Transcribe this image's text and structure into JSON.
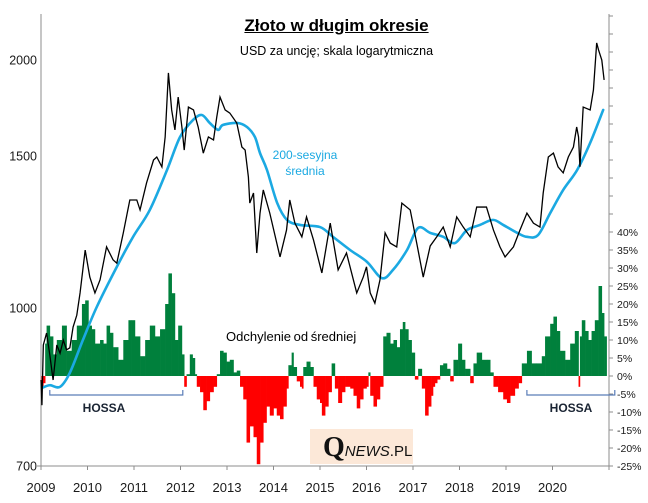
{
  "chart_data": {
    "type": "line",
    "title": "Złoto w długim okresie",
    "subtitle": "USD za uncję; skala logarytmiczna",
    "x_ticks": [
      "2009",
      "2010",
      "2011",
      "2012",
      "2013",
      "2014",
      "2015",
      "2016",
      "2017",
      "2018",
      "2019",
      "2020"
    ],
    "y_left": {
      "scale": "log",
      "tick_values": [
        700,
        1000,
        1500,
        2000
      ],
      "tick_labels": [
        "700",
        "1000",
        "1500",
        "2000"
      ]
    },
    "y_right": {
      "min": -25,
      "max": 100,
      "step": 5,
      "tick_labels": [
        "-25%",
        "-20%",
        "-15%",
        "-10%",
        "-5%",
        "0%",
        "5%",
        "10%",
        "15%",
        "20%",
        "25%",
        "30%",
        "35%",
        "40%"
      ]
    },
    "price": [
      [
        2009.0,
        850
      ],
      [
        2009.02,
        803
      ],
      [
        2009.05,
        920
      ],
      [
        2009.12,
        945
      ],
      [
        2009.19,
        899
      ],
      [
        2009.26,
        850
      ],
      [
        2009.34,
        920
      ],
      [
        2009.41,
        903
      ],
      [
        2009.48,
        930
      ],
      [
        2009.55,
        910
      ],
      [
        2009.62,
        914
      ],
      [
        2009.69,
        958
      ],
      [
        2009.77,
        984
      ],
      [
        2009.84,
        1041
      ],
      [
        2009.95,
        1167
      ],
      [
        2010.05,
        1086
      ],
      [
        2010.16,
        1041
      ],
      [
        2010.27,
        1078
      ],
      [
        2010.41,
        1177
      ],
      [
        2010.55,
        1137
      ],
      [
        2010.63,
        1127
      ],
      [
        2010.77,
        1222
      ],
      [
        2010.91,
        1334
      ],
      [
        2011.06,
        1334
      ],
      [
        2011.13,
        1299
      ],
      [
        2011.27,
        1396
      ],
      [
        2011.42,
        1484
      ],
      [
        2011.49,
        1496
      ],
      [
        2011.6,
        1457
      ],
      [
        2011.67,
        1588
      ],
      [
        2011.74,
        1924
      ],
      [
        2011.81,
        1722
      ],
      [
        2011.88,
        1622
      ],
      [
        2011.95,
        1790
      ],
      [
        2012.03,
        1636
      ],
      [
        2012.08,
        1527
      ],
      [
        2012.17,
        1737
      ],
      [
        2012.28,
        1722
      ],
      [
        2012.38,
        1636
      ],
      [
        2012.49,
        1513
      ],
      [
        2012.6,
        1588
      ],
      [
        2012.71,
        1574
      ],
      [
        2012.78,
        1686
      ],
      [
        2012.85,
        1790
      ],
      [
        2012.96,
        1722
      ],
      [
        2013.06,
        1706
      ],
      [
        2013.21,
        1656
      ],
      [
        2013.32,
        1541
      ],
      [
        2013.39,
        1527
      ],
      [
        2013.46,
        1418
      ],
      [
        2013.49,
        1323
      ],
      [
        2013.57,
        1359
      ],
      [
        2013.64,
        1158
      ],
      [
        2013.71,
        1288
      ],
      [
        2013.78,
        1370
      ],
      [
        2013.92,
        1288
      ],
      [
        2014.14,
        1146
      ],
      [
        2014.28,
        1231
      ],
      [
        2014.35,
        1334
      ],
      [
        2014.46,
        1254
      ],
      [
        2014.61,
        1209
      ],
      [
        2014.71,
        1275
      ],
      [
        2014.86,
        1199
      ],
      [
        2015.04,
        1098
      ],
      [
        2015.22,
        1254
      ],
      [
        2015.39,
        1107
      ],
      [
        2015.57,
        1158
      ],
      [
        2015.79,
        1041
      ],
      [
        2015.93,
        1086
      ],
      [
        2016.0,
        1116
      ],
      [
        2016.08,
        1041
      ],
      [
        2016.18,
        1013
      ],
      [
        2016.29,
        1078
      ],
      [
        2016.4,
        1222
      ],
      [
        2016.51,
        1189
      ],
      [
        2016.65,
        1177
      ],
      [
        2016.76,
        1323
      ],
      [
        2016.94,
        1299
      ],
      [
        2017.08,
        1189
      ],
      [
        2017.22,
        1086
      ],
      [
        2017.37,
        1180
      ],
      [
        2017.51,
        1209
      ],
      [
        2017.65,
        1241
      ],
      [
        2017.8,
        1177
      ],
      [
        2017.94,
        1275
      ],
      [
        2018.08,
        1241
      ],
      [
        2018.23,
        1209
      ],
      [
        2018.37,
        1309
      ],
      [
        2018.58,
        1309
      ],
      [
        2018.73,
        1231
      ],
      [
        2018.87,
        1177
      ],
      [
        2018.98,
        1146
      ],
      [
        2019.16,
        1177
      ],
      [
        2019.3,
        1231
      ],
      [
        2019.45,
        1288
      ],
      [
        2019.59,
        1254
      ],
      [
        2019.73,
        1241
      ],
      [
        2019.8,
        1359
      ],
      [
        2019.91,
        1496
      ],
      [
        2020.02,
        1513
      ],
      [
        2020.12,
        1457
      ],
      [
        2020.23,
        1434
      ],
      [
        2020.34,
        1496
      ],
      [
        2020.45,
        1541
      ],
      [
        2020.52,
        1636
      ],
      [
        2020.56,
        1588
      ],
      [
        2020.59,
        1457
      ],
      [
        2020.66,
        1737
      ],
      [
        2020.81,
        1722
      ],
      [
        2020.88,
        1828
      ],
      [
        2020.95,
        2105
      ],
      [
        2020.99,
        2061
      ],
      [
        2021.06,
        2000
      ],
      [
        2021.11,
        1884
      ]
    ],
    "ma200": [
      [
        2009.02,
        835
      ],
      [
        2009.19,
        840
      ],
      [
        2009.41,
        837
      ],
      [
        2009.62,
        864
      ],
      [
        2009.9,
        930
      ],
      [
        2010.2,
        1003
      ],
      [
        2010.63,
        1116
      ],
      [
        2010.98,
        1209
      ],
      [
        2011.34,
        1299
      ],
      [
        2011.71,
        1445
      ],
      [
        2011.99,
        1588
      ],
      [
        2012.27,
        1671
      ],
      [
        2012.46,
        1696
      ],
      [
        2012.63,
        1656
      ],
      [
        2012.81,
        1622
      ],
      [
        2012.91,
        1646
      ],
      [
        2013.22,
        1656
      ],
      [
        2013.43,
        1636
      ],
      [
        2013.6,
        1588
      ],
      [
        2013.71,
        1513
      ],
      [
        2013.86,
        1445
      ],
      [
        2014.08,
        1323
      ],
      [
        2014.29,
        1265
      ],
      [
        2014.57,
        1248
      ],
      [
        2015.0,
        1241
      ],
      [
        2015.28,
        1209
      ],
      [
        2015.65,
        1167
      ],
      [
        2016.01,
        1131
      ],
      [
        2016.33,
        1083
      ],
      [
        2016.57,
        1107
      ],
      [
        2016.87,
        1167
      ],
      [
        2017.11,
        1238
      ],
      [
        2017.37,
        1222
      ],
      [
        2017.65,
        1209
      ],
      [
        2017.9,
        1189
      ],
      [
        2018.16,
        1231
      ],
      [
        2018.44,
        1248
      ],
      [
        2018.72,
        1265
      ],
      [
        2018.94,
        1248
      ],
      [
        2019.24,
        1222
      ],
      [
        2019.45,
        1209
      ],
      [
        2019.69,
        1215
      ],
      [
        2019.95,
        1288
      ],
      [
        2020.23,
        1370
      ],
      [
        2020.53,
        1445
      ],
      [
        2020.81,
        1560
      ],
      [
        2021.09,
        1722
      ]
    ],
    "deviation_pct": [
      [
        2009.0,
        -3
      ],
      [
        2009.05,
        -2
      ],
      [
        2009.09,
        9
      ],
      [
        2009.12,
        14
      ],
      [
        2009.19,
        11
      ],
      [
        2009.26,
        6
      ],
      [
        2009.34,
        10
      ],
      [
        2009.45,
        14
      ],
      [
        2009.55,
        7
      ],
      [
        2009.66,
        10
      ],
      [
        2009.77,
        14
      ],
      [
        2009.88,
        20
      ],
      [
        2009.95,
        21
      ],
      [
        2010.02,
        14
      ],
      [
        2010.09,
        13
      ],
      [
        2010.16,
        9
      ],
      [
        2010.27,
        10
      ],
      [
        2010.34,
        9
      ],
      [
        2010.41,
        14
      ],
      [
        2010.48,
        12
      ],
      [
        2010.55,
        8
      ],
      [
        2010.66,
        4.5
      ],
      [
        2010.77,
        10
      ],
      [
        2010.88,
        15.5
      ],
      [
        2010.95,
        15.5
      ],
      [
        2011.02,
        11
      ],
      [
        2011.13,
        5.5
      ],
      [
        2011.24,
        10
      ],
      [
        2011.34,
        14
      ],
      [
        2011.45,
        11
      ],
      [
        2011.56,
        13
      ],
      [
        2011.67,
        20
      ],
      [
        2011.74,
        28.5
      ],
      [
        2011.81,
        23
      ],
      [
        2011.88,
        10
      ],
      [
        2011.95,
        14
      ],
      [
        2012.03,
        6
      ],
      [
        2012.08,
        -3
      ],
      [
        2012.13,
        0.5
      ],
      [
        2012.2,
        6
      ],
      [
        2012.26,
        5
      ],
      [
        2012.31,
        0.5
      ],
      [
        2012.35,
        -3
      ],
      [
        2012.42,
        -4.5
      ],
      [
        2012.49,
        -9.5
      ],
      [
        2012.56,
        -7
      ],
      [
        2012.63,
        -4.5
      ],
      [
        2012.71,
        -3
      ],
      [
        2012.78,
        0.5
      ],
      [
        2012.85,
        7
      ],
      [
        2012.92,
        6.5
      ],
      [
        2012.99,
        4
      ],
      [
        2013.06,
        4.5
      ],
      [
        2013.14,
        1
      ],
      [
        2013.21,
        1.5
      ],
      [
        2013.28,
        -3
      ],
      [
        2013.35,
        -6.5
      ],
      [
        2013.42,
        -18.5
      ],
      [
        2013.49,
        -14
      ],
      [
        2013.57,
        -17
      ],
      [
        2013.64,
        -24.5
      ],
      [
        2013.71,
        -18.5
      ],
      [
        2013.78,
        -13
      ],
      [
        2013.85,
        -8.5
      ],
      [
        2013.92,
        -11
      ],
      [
        2014.0,
        -9
      ],
      [
        2014.07,
        -11
      ],
      [
        2014.14,
        -12
      ],
      [
        2014.21,
        -8.5
      ],
      [
        2014.28,
        -3.5
      ],
      [
        2014.32,
        3
      ],
      [
        2014.39,
        6.5
      ],
      [
        2014.43,
        2.5
      ],
      [
        2014.5,
        -1.5
      ],
      [
        2014.57,
        -3
      ],
      [
        2014.61,
        -3.5
      ],
      [
        2014.64,
        2.5
      ],
      [
        2014.71,
        4
      ],
      [
        2014.79,
        2.5
      ],
      [
        2014.86,
        -3
      ],
      [
        2014.93,
        -6.5
      ],
      [
        2015.0,
        -7.5
      ],
      [
        2015.04,
        -11
      ],
      [
        2015.11,
        -8.5
      ],
      [
        2015.18,
        -4.5
      ],
      [
        2015.25,
        3.5
      ],
      [
        2015.32,
        -3.5
      ],
      [
        2015.39,
        -7.5
      ],
      [
        2015.47,
        -4.5
      ],
      [
        2015.54,
        -3
      ],
      [
        2015.65,
        -3.5
      ],
      [
        2015.72,
        -5.5
      ],
      [
        2015.79,
        -9
      ],
      [
        2015.86,
        -6.5
      ],
      [
        2015.93,
        -3.5
      ],
      [
        2016.0,
        -3
      ],
      [
        2016.04,
        1
      ],
      [
        2016.08,
        -5.5
      ],
      [
        2016.15,
        -8.5
      ],
      [
        2016.22,
        -6.5
      ],
      [
        2016.29,
        -3
      ],
      [
        2016.36,
        11
      ],
      [
        2016.43,
        12
      ],
      [
        2016.51,
        9
      ],
      [
        2016.58,
        10
      ],
      [
        2016.65,
        8
      ],
      [
        2016.72,
        13
      ],
      [
        2016.78,
        15
      ],
      [
        2016.83,
        13
      ],
      [
        2016.9,
        10
      ],
      [
        2016.97,
        6.5
      ],
      [
        2017.04,
        -1
      ],
      [
        2017.11,
        2
      ],
      [
        2017.19,
        -3.5
      ],
      [
        2017.26,
        -11
      ],
      [
        2017.33,
        -8.5
      ],
      [
        2017.39,
        -5.5
      ],
      [
        2017.43,
        -3
      ],
      [
        2017.47,
        -2
      ],
      [
        2017.52,
        -1
      ],
      [
        2017.58,
        3
      ],
      [
        2017.65,
        3.5
      ],
      [
        2017.73,
        2
      ],
      [
        2017.8,
        -1.5
      ],
      [
        2017.87,
        4.5
      ],
      [
        2017.97,
        9
      ],
      [
        2018.05,
        4.5
      ],
      [
        2018.12,
        2
      ],
      [
        2018.23,
        -2
      ],
      [
        2018.3,
        3.5
      ],
      [
        2018.37,
        6.5
      ],
      [
        2018.48,
        4.5
      ],
      [
        2018.59,
        4.5
      ],
      [
        2018.66,
        1
      ],
      [
        2018.73,
        -3
      ],
      [
        2018.83,
        -4.5
      ],
      [
        2018.94,
        -6.5
      ],
      [
        2019.02,
        -7.5
      ],
      [
        2019.09,
        -5.5
      ],
      [
        2019.19,
        -3.5
      ],
      [
        2019.27,
        -2
      ],
      [
        2019.34,
        3.5
      ],
      [
        2019.45,
        7
      ],
      [
        2019.55,
        3.5
      ],
      [
        2019.66,
        3.5
      ],
      [
        2019.77,
        5.5
      ],
      [
        2019.84,
        11
      ],
      [
        2019.95,
        14.5
      ],
      [
        2020.02,
        16.5
      ],
      [
        2020.09,
        12.5
      ],
      [
        2020.16,
        7
      ],
      [
        2020.27,
        4.5
      ],
      [
        2020.38,
        9
      ],
      [
        2020.48,
        12.5
      ],
      [
        2020.56,
        -3
      ],
      [
        2020.59,
        11
      ],
      [
        2020.63,
        15.5
      ],
      [
        2020.7,
        12.5
      ],
      [
        2020.77,
        10
      ],
      [
        2020.84,
        12.5
      ],
      [
        2020.91,
        15.5
      ],
      [
        2020.99,
        25
      ],
      [
        2021.06,
        17.5
      ],
      [
        2021.11,
        11
      ]
    ],
    "annotations": {
      "ma_label_line1": "200-sesyjna",
      "ma_label_line2": "średnia",
      "deviation_label": "Odchylenie od średniej",
      "periods": [
        {
          "label": "HOSSA",
          "from": 2009.19,
          "to": 2012.05
        },
        {
          "label": "HOSSA",
          "from": 2019.45,
          "to": 2021.34
        }
      ]
    },
    "grid": false,
    "legend": "none"
  },
  "logo": {
    "q": "Q",
    "news": "NEWS",
    "pl": ".PL"
  },
  "colors": {
    "price": "#000000",
    "ma": "#1BA9E2",
    "deviation_positive": "#00803C",
    "deviation_negative": "#FF0000",
    "bracket": "#5A7DB8",
    "axis": "#8C8C8C",
    "logo_bg": "#FCE8D8"
  }
}
